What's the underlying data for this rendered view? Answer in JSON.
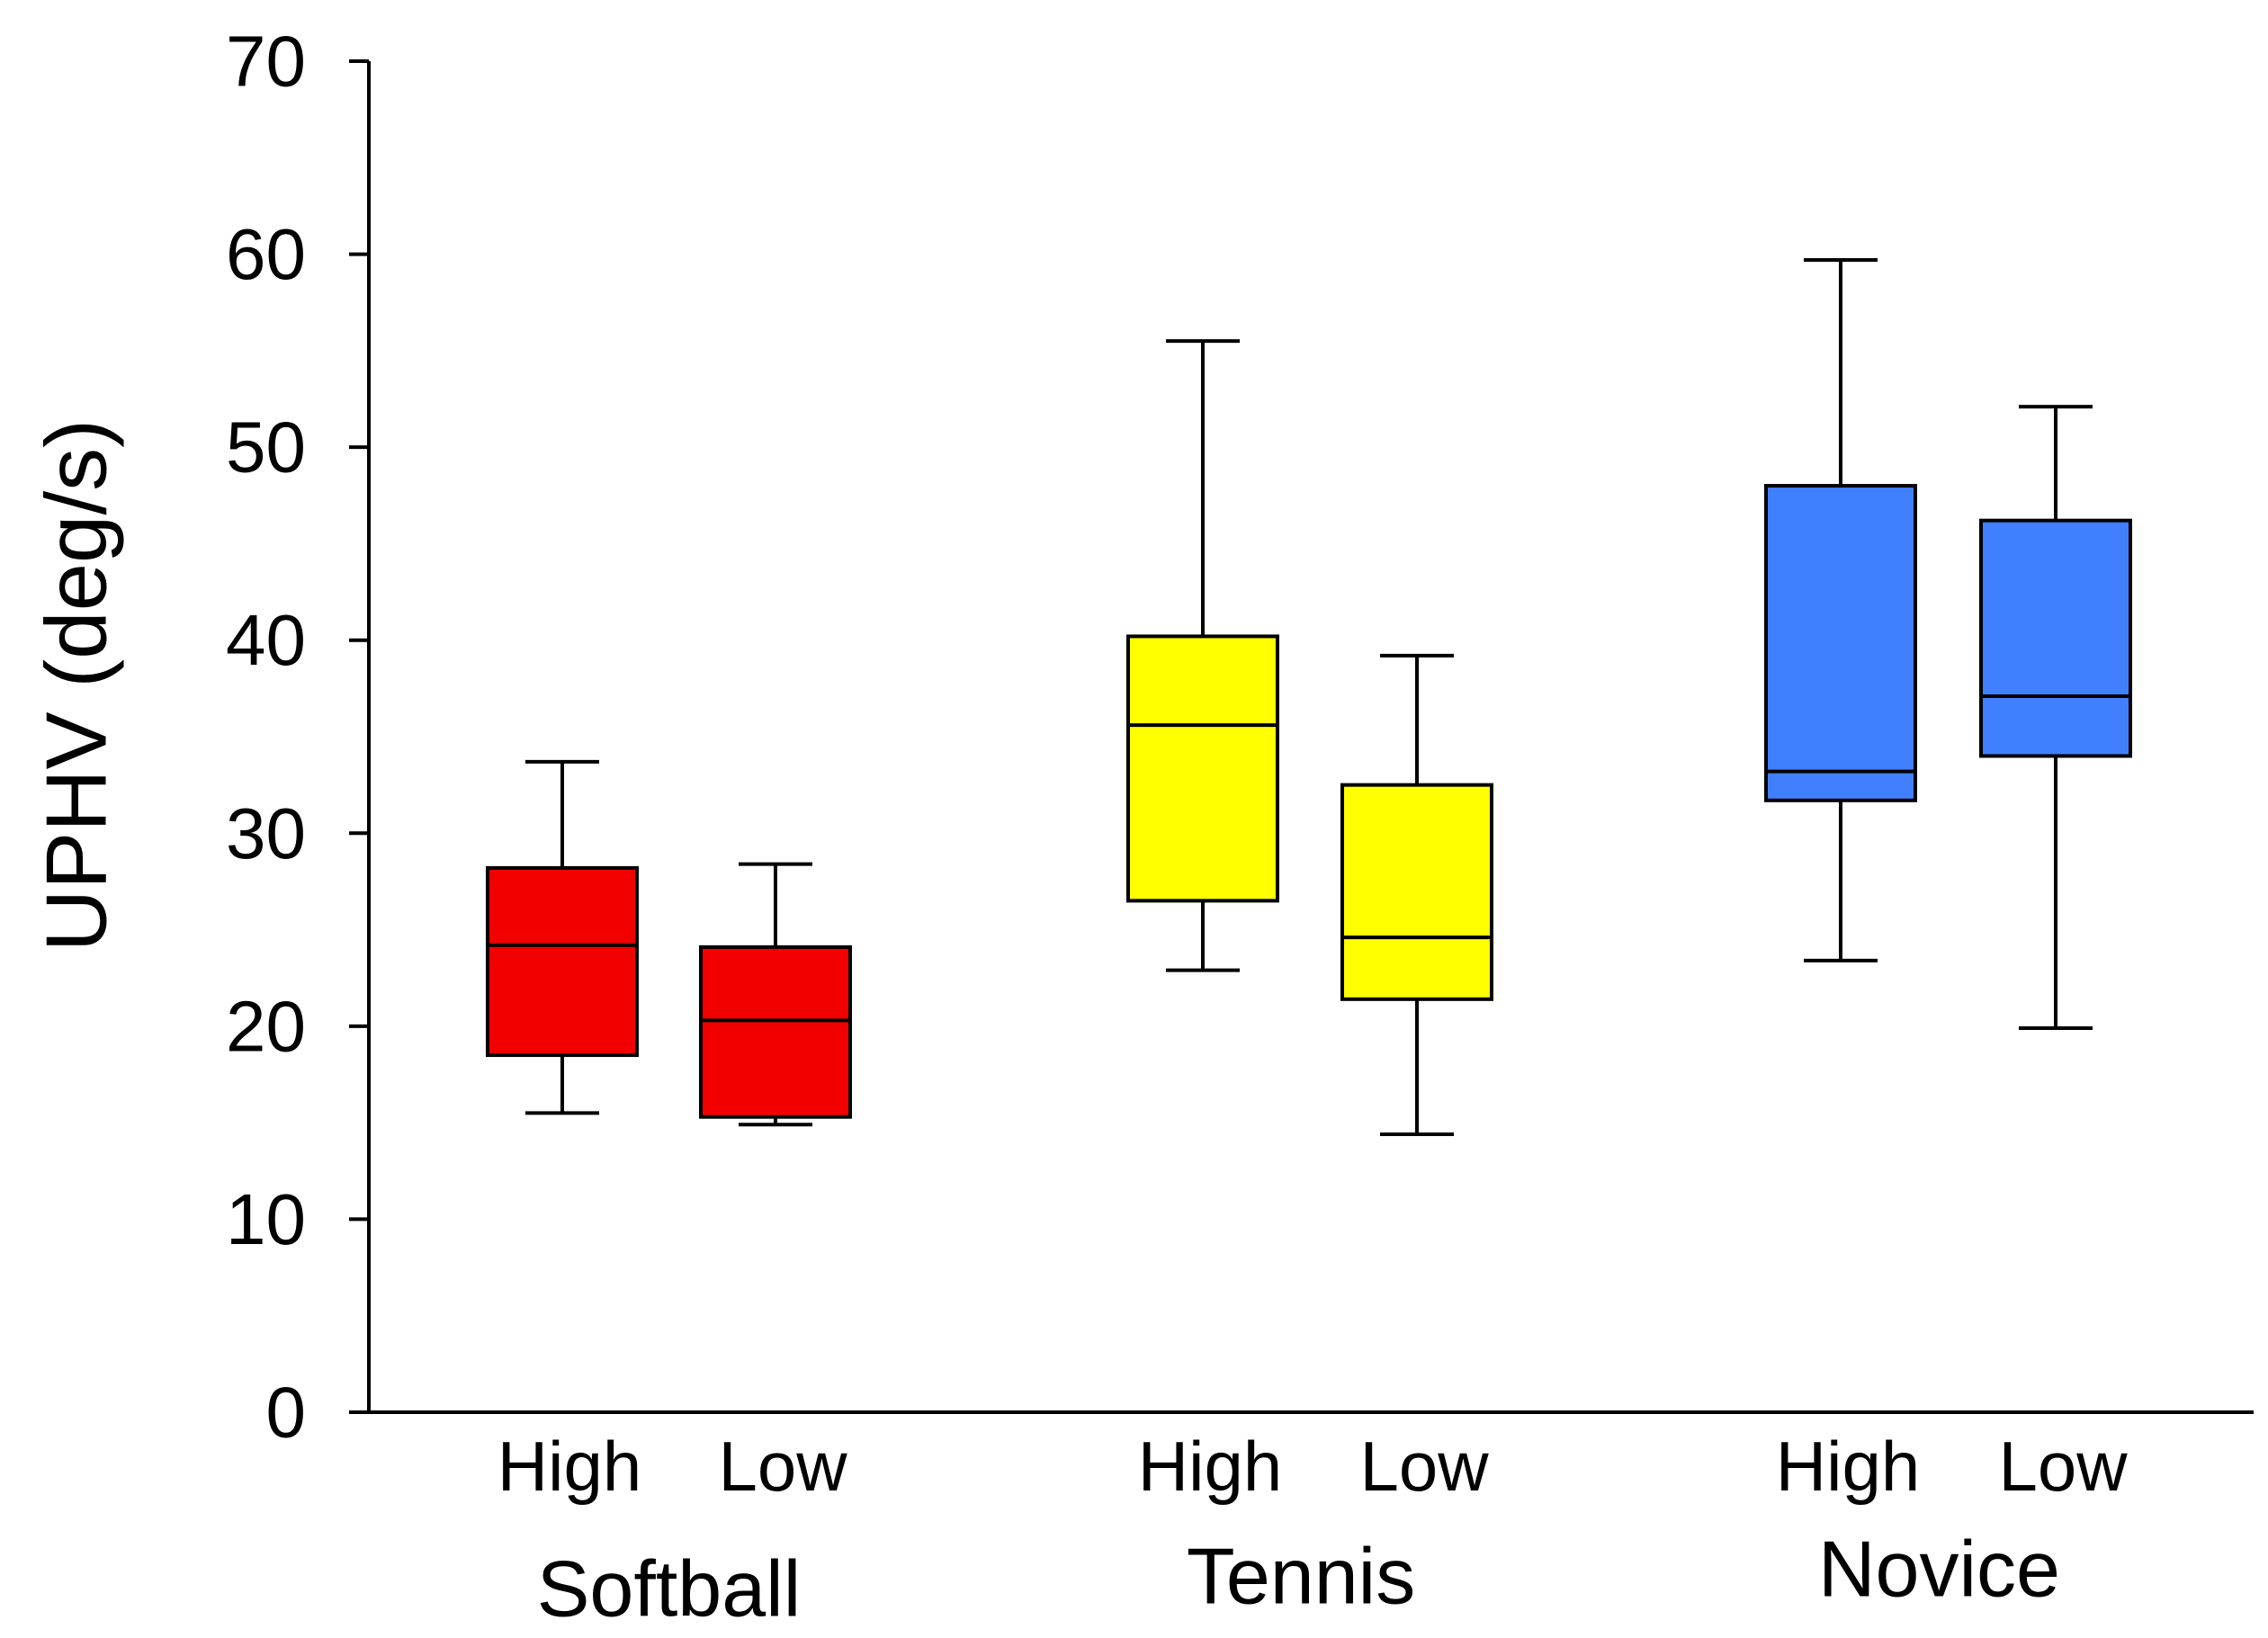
{
  "chart_data": {
    "type": "box",
    "title": "",
    "ylabel": "UPHV (deg/s)",
    "xlabel": "",
    "ylim": [
      0,
      70
    ],
    "yticks": [
      0,
      10,
      20,
      30,
      40,
      50,
      60,
      70
    ],
    "grid": false,
    "groups": [
      {
        "name": "Softball",
        "color": "#f20000",
        "boxes": [
          {
            "label": "High",
            "whisker_low": 15.5,
            "q1": 18.5,
            "median": 24.2,
            "q3": 28.2,
            "whisker_high": 33.7
          },
          {
            "label": "Low",
            "whisker_low": 14.9,
            "q1": 15.3,
            "median": 20.3,
            "q3": 24.1,
            "whisker_high": 28.4
          }
        ]
      },
      {
        "name": "Tennis",
        "color": "#ffff00",
        "boxes": [
          {
            "label": "High",
            "whisker_low": 22.9,
            "q1": 26.5,
            "median": 35.6,
            "q3": 40.2,
            "whisker_high": 55.5
          },
          {
            "label": "Low",
            "whisker_low": 14.4,
            "q1": 21.4,
            "median": 24.6,
            "q3": 32.5,
            "whisker_high": 39.2
          }
        ]
      },
      {
        "name": "Novice",
        "color": "#4080ff",
        "boxes": [
          {
            "label": "High",
            "whisker_low": 23.4,
            "q1": 31.7,
            "median": 33.2,
            "q3": 48.0,
            "whisker_high": 59.7
          },
          {
            "label": "Low",
            "whisker_low": 19.9,
            "q1": 34.0,
            "median": 37.1,
            "q3": 46.2,
            "whisker_high": 52.1
          }
        ]
      }
    ]
  }
}
